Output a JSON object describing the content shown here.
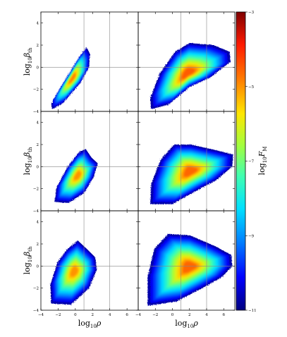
{
  "chart_data": {
    "type": "heatmap",
    "layout": "3 rows x 2 columns, shared x and y axes, single colorbar at right",
    "x_axis": {
      "label": "log10ρ",
      "label_base": "log",
      "label_sub": "10",
      "label_var": "ρ",
      "range": [
        -4,
        7.3
      ],
      "ticks": [
        -4,
        -2,
        0,
        2,
        4,
        6
      ],
      "tick_labels": [
        "−4",
        "−2",
        "0",
        "2",
        "4",
        "6"
      ]
    },
    "y_axis": {
      "label": "log10βth",
      "label_base": "log",
      "label_sub": "10",
      "label_var": "β",
      "label_varsub": "th",
      "range": [
        -4,
        5
      ],
      "ticks": [
        -4,
        -2,
        0,
        2,
        4
      ],
      "tick_labels": [
        "−4",
        "−2",
        "0",
        "2",
        "4"
      ]
    },
    "colorbar": {
      "label": "log10FM",
      "label_base": "log",
      "label_sub": "10",
      "label_var": "F",
      "label_varsub": "M",
      "range": [
        -11,
        -3
      ],
      "ticks": [
        -11,
        -9,
        -7,
        -5,
        -3
      ],
      "tick_labels": [
        "−11",
        "−9",
        "−7",
        "−5",
        "−3"
      ],
      "colormap": "jet"
    },
    "reference_lines": {
      "horizontal_y": 0,
      "vertical_x": [
        1,
        4
      ]
    },
    "panels": [
      {
        "row": 0,
        "col": 0,
        "blobs": [
          {
            "points": [
              [
                -2.7,
                -3.8
              ],
              [
                -1.5,
                -3.3
              ],
              [
                0.6,
                -1.4
              ],
              [
                1.6,
                0.0
              ],
              [
                1.7,
                1.2
              ],
              [
                1.3,
                1.8
              ],
              [
                0.6,
                1.1
              ],
              [
                -0.5,
                -0.3
              ],
              [
                -1.7,
                -1.8
              ],
              [
                -2.8,
                -3.3
              ]
            ],
            "peak": -4.8
          }
        ]
      },
      {
        "row": 0,
        "col": 1,
        "blobs": [
          {
            "points": [
              [
                -2.5,
                -3.8
              ],
              [
                -0.5,
                -3.4
              ],
              [
                2.0,
                -1.8
              ],
              [
                4.5,
                -0.9
              ],
              [
                6.8,
                0.5
              ],
              [
                6.7,
                1.4
              ],
              [
                4.8,
                2.0
              ],
              [
                2.0,
                2.2
              ],
              [
                0.3,
                1.4
              ],
              [
                -1.5,
                -0.6
              ],
              [
                -2.6,
                -2.8
              ]
            ],
            "peak": -4.5
          }
        ]
      },
      {
        "row": 1,
        "col": 0,
        "blobs": [
          {
            "points": [
              [
                -2.4,
                -3.2
              ],
              [
                -0.8,
                -3.3
              ],
              [
                1.0,
                -2.4
              ],
              [
                2.1,
                -1.0
              ],
              [
                2.6,
                0.3
              ],
              [
                1.9,
                0.8
              ],
              [
                1.2,
                1.6
              ],
              [
                0.4,
                1.3
              ],
              [
                -0.9,
                0.0
              ],
              [
                -2.2,
                -1.9
              ]
            ],
            "peak": -5.0
          }
        ]
      },
      {
        "row": 1,
        "col": 1,
        "blobs": [
          {
            "points": [
              [
                -2.6,
                -3.4
              ],
              [
                0.0,
                -3.4
              ],
              [
                3.0,
                -2.1
              ],
              [
                5.2,
                -1.2
              ],
              [
                7.0,
                0.0
              ],
              [
                7.1,
                1.1
              ],
              [
                5.0,
                1.5
              ],
              [
                2.2,
                2.0
              ],
              [
                0.2,
                2.0
              ],
              [
                -1.4,
                0.6
              ],
              [
                -2.5,
                -1.6
              ]
            ],
            "peak": -4.6
          }
        ]
      },
      {
        "row": 2,
        "col": 0,
        "blobs": [
          {
            "points": [
              [
                -2.8,
                -3.4
              ],
              [
                -0.5,
                -3.5
              ],
              [
                1.6,
                -2.0
              ],
              [
                2.5,
                -0.3
              ],
              [
                2.3,
                0.8
              ],
              [
                1.4,
                1.5
              ],
              [
                0.3,
                2.3
              ],
              [
                -1.0,
                1.5
              ],
              [
                -2.1,
                0.3
              ],
              [
                -2.9,
                -1.7
              ]
            ],
            "peak": -5.0
          }
        ]
      },
      {
        "row": 2,
        "col": 1,
        "blobs": [
          {
            "points": [
              [
                -2.9,
                -3.6
              ],
              [
                0.5,
                -3.2
              ],
              [
                3.5,
                -2.0
              ],
              [
                5.8,
                -1.0
              ],
              [
                7.0,
                0.0
              ],
              [
                6.9,
                1.0
              ],
              [
                5.0,
                1.8
              ],
              [
                2.0,
                2.8
              ],
              [
                -0.5,
                2.9
              ],
              [
                -2.1,
                1.6
              ],
              [
                -2.9,
                -1.0
              ]
            ],
            "peak": -4.6
          }
        ]
      }
    ]
  }
}
